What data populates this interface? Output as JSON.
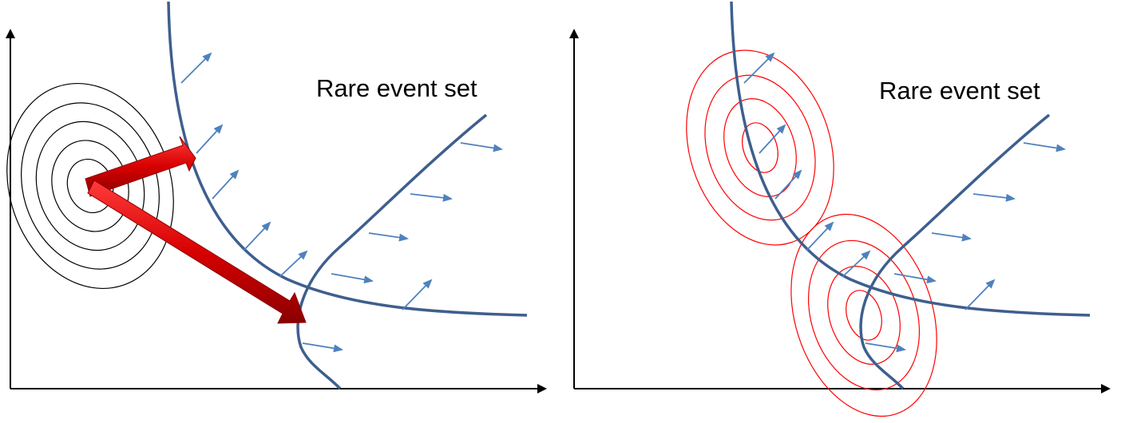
{
  "panels": [
    {
      "id": "left",
      "label": "Rare event set",
      "description_color": "#000000"
    },
    {
      "id": "right",
      "label": "Rare event set"
    }
  ],
  "colors": {
    "boundary": "#3E5F8E",
    "normal_arrow": "#4F81BD",
    "axis": "#000000",
    "nominal_contours": "#000000",
    "shift_arrow": "#E00000",
    "is_contours": "#FF0000"
  },
  "icons": [
    "axis-arrowhead",
    "normal-vector-arrow",
    "shift-arrow"
  ]
}
